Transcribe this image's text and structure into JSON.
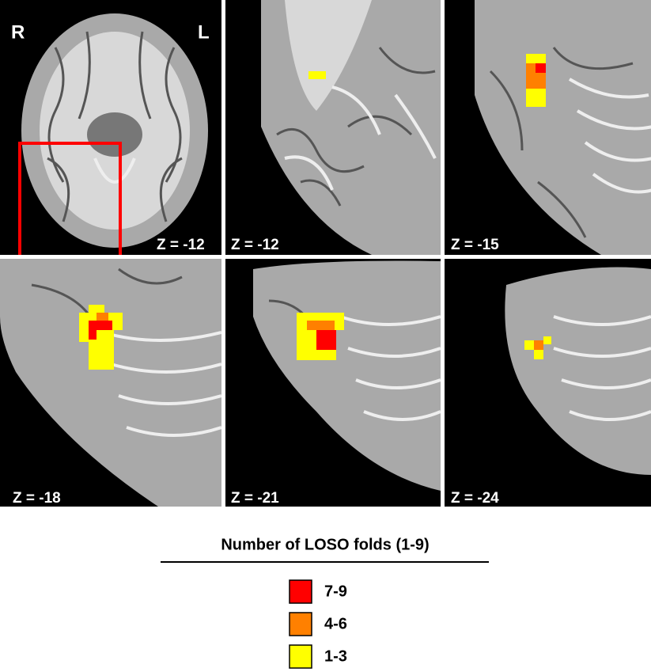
{
  "orientation": {
    "right": "R",
    "left": "L"
  },
  "panels": [
    {
      "label": "Z = -12"
    },
    {
      "label": "Z = -12"
    },
    {
      "label": "Z = -15"
    },
    {
      "label": "Z = -18"
    },
    {
      "label": "Z = -21"
    },
    {
      "label": "Z = -24"
    }
  ],
  "legend": {
    "title": "Number of LOSO folds (1-9)",
    "items": [
      {
        "label": "7-9",
        "color": "#ff0000"
      },
      {
        "label": "4-6",
        "color": "#ff8000"
      },
      {
        "label": "1-3",
        "color": "#ffff00"
      }
    ]
  }
}
